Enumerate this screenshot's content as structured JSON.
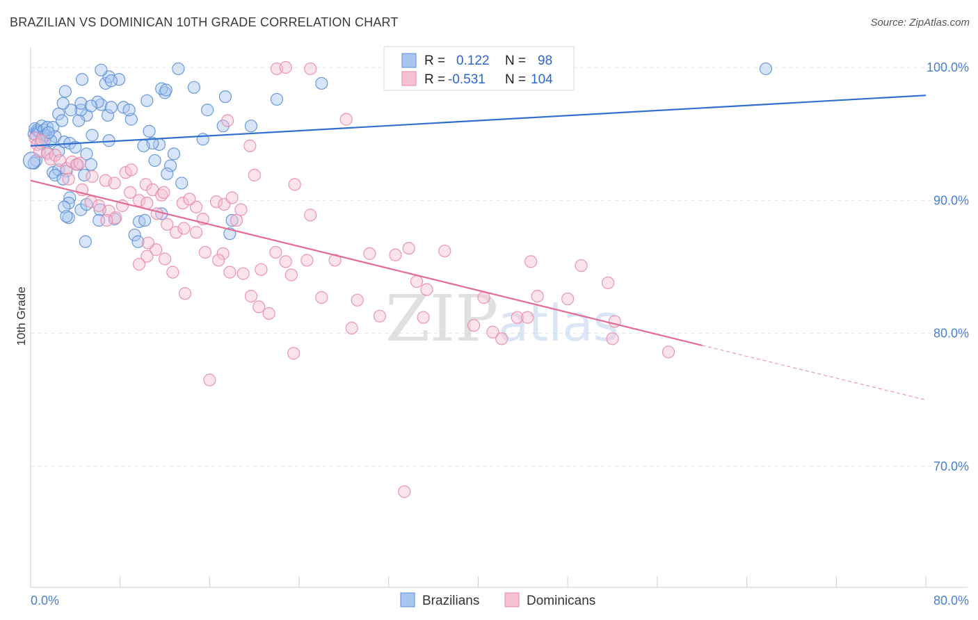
{
  "title": "BRAZILIAN VS DOMINICAN 10TH GRADE CORRELATION CHART",
  "source": "Source: ZipAtlas.com",
  "watermark": {
    "zip": "ZIP",
    "atlas": "atlas"
  },
  "colors": {
    "brazilians_fill": "#a9c6f0",
    "brazilians_stroke": "#5a8fd8",
    "brazilians_line": "#2f6fcf",
    "dominicans_fill": "#f6c1d2",
    "dominicans_stroke": "#e88aaa",
    "dominicans_line": "#e46a95",
    "axis_label": "#4a7fd0",
    "grid": "#e4e4e4"
  },
  "legend": {
    "r_label": "R =",
    "n_label": "N =",
    "rows": [
      {
        "r": "0.122",
        "n": "98"
      },
      {
        "r": "-0.531",
        "n": "104"
      }
    ]
  },
  "chart_data": {
    "type": "scatter",
    "title": "BRAZILIAN VS DOMINICAN 10TH GRADE CORRELATION CHART",
    "xlabel": "",
    "ylabel": "10th Grade",
    "xlim": [
      0,
      80
    ],
    "ylim": [
      60,
      100
    ],
    "y_ticks": [
      {
        "value": 100,
        "label": "100.0%"
      },
      {
        "value": 90,
        "label": "90.0%"
      },
      {
        "value": 80,
        "label": "80.0%"
      },
      {
        "value": 70,
        "label": "70.0%"
      }
    ],
    "x_tick_labels": [
      {
        "value": 0,
        "label": "0.0%"
      },
      {
        "value": 80,
        "label": "80.0%"
      }
    ],
    "series": [
      {
        "name": "Brazilians",
        "r": 0.122,
        "n": 98,
        "trend": {
          "x": [
            0,
            80
          ],
          "y": [
            94.1,
            97.9
          ]
        },
        "points": [
          [
            0.3,
            95.0
          ],
          [
            0.4,
            95.4
          ],
          [
            0.5,
            94.9
          ],
          [
            0.6,
            95.3
          ],
          [
            0.7,
            95.2
          ],
          [
            0.8,
            95.1
          ],
          [
            1.0,
            95.6
          ],
          [
            1.2,
            95.3
          ],
          [
            1.1,
            94.8
          ],
          [
            0.9,
            94.3
          ],
          [
            1.3,
            94.6
          ],
          [
            1.5,
            95.5
          ],
          [
            1.4,
            94.9
          ],
          [
            2.0,
            95.5
          ],
          [
            2.2,
            94.8
          ],
          [
            1.8,
            94.5
          ],
          [
            1.6,
            95.1
          ],
          [
            0.5,
            93.0
          ],
          [
            0.3,
            92.8
          ],
          [
            1.5,
            93.6
          ],
          [
            2.5,
            93.7
          ],
          [
            3.0,
            94.4
          ],
          [
            3.5,
            94.3
          ],
          [
            4.0,
            94.0
          ],
          [
            5.0,
            93.5
          ],
          [
            5.5,
            94.9
          ],
          [
            7.0,
            94.5
          ],
          [
            2.0,
            92.1
          ],
          [
            2.5,
            92.3
          ],
          [
            3.2,
            92.2
          ],
          [
            4.2,
            92.7
          ],
          [
            5.4,
            92.7
          ],
          [
            4.8,
            91.9
          ],
          [
            2.2,
            91.9
          ],
          [
            2.9,
            91.6
          ],
          [
            3.5,
            90.2
          ],
          [
            3.4,
            89.8
          ],
          [
            4.5,
            89.3
          ],
          [
            3.0,
            89.5
          ],
          [
            3.4,
            88.7
          ],
          [
            3.2,
            88.8
          ],
          [
            6.2,
            89.3
          ],
          [
            5.0,
            89.7
          ],
          [
            6.1,
            88.5
          ],
          [
            7.5,
            88.6
          ],
          [
            9.7,
            88.4
          ],
          [
            10.2,
            88.5
          ],
          [
            4.9,
            86.9
          ],
          [
            9.3,
            87.4
          ],
          [
            9.6,
            86.9
          ],
          [
            11.7,
            89.0
          ],
          [
            11.5,
            94.2
          ],
          [
            10.9,
            94.3
          ],
          [
            11.1,
            93.0
          ],
          [
            12.5,
            92.6
          ],
          [
            12.2,
            92.0
          ],
          [
            10.6,
            95.2
          ],
          [
            13.5,
            91.3
          ],
          [
            12.8,
            93.5
          ],
          [
            15.4,
            94.6
          ],
          [
            17.2,
            95.6
          ],
          [
            15.8,
            96.8
          ],
          [
            17.4,
            97.8
          ],
          [
            14.6,
            98.5
          ],
          [
            10.4,
            97.5
          ],
          [
            12.0,
            98.1
          ],
          [
            11.7,
            98.4
          ],
          [
            9.0,
            96.1
          ],
          [
            8.3,
            97.0
          ],
          [
            6.9,
            96.4
          ],
          [
            6.3,
            97.2
          ],
          [
            5.0,
            96.4
          ],
          [
            4.3,
            96.0
          ],
          [
            4.5,
            96.8
          ],
          [
            3.6,
            96.8
          ],
          [
            2.9,
            97.3
          ],
          [
            2.5,
            96.5
          ],
          [
            2.8,
            96.0
          ],
          [
            4.5,
            97.3
          ],
          [
            6.0,
            97.4
          ],
          [
            5.4,
            97.1
          ],
          [
            7.2,
            97.0
          ],
          [
            8.8,
            96.8
          ],
          [
            6.7,
            98.8
          ],
          [
            7.0,
            99.3
          ],
          [
            7.9,
            99.1
          ],
          [
            7.2,
            99.0
          ],
          [
            4.6,
            99.1
          ],
          [
            3.1,
            98.2
          ],
          [
            6.3,
            99.8
          ],
          [
            13.2,
            99.9
          ],
          [
            26.0,
            98.8
          ],
          [
            65.7,
            99.9
          ],
          [
            12.1,
            98.3
          ],
          [
            22.0,
            97.6
          ],
          [
            19.7,
            95.6
          ],
          [
            18.0,
            88.5
          ],
          [
            17.8,
            87.5
          ],
          [
            10.1,
            94.1
          ]
        ]
      },
      {
        "name": "Dominicans",
        "r": -0.531,
        "n": 104,
        "trend": {
          "x": [
            0,
            60
          ],
          "y": [
            91.5,
            79.1
          ]
        },
        "trend_dashed": {
          "x": [
            60,
            80
          ],
          "y": [
            79.1,
            75.0
          ]
        },
        "points": [
          [
            0.4,
            94.7
          ],
          [
            0.6,
            94.2
          ],
          [
            0.8,
            93.7
          ],
          [
            1.0,
            94.5
          ],
          [
            1.5,
            93.5
          ],
          [
            1.8,
            93.1
          ],
          [
            2.2,
            93.4
          ],
          [
            2.6,
            93.0
          ],
          [
            3.2,
            92.4
          ],
          [
            3.7,
            92.9
          ],
          [
            4.1,
            92.7
          ],
          [
            4.4,
            92.8
          ],
          [
            5.5,
            91.8
          ],
          [
            6.7,
            91.5
          ],
          [
            7.5,
            91.3
          ],
          [
            8.5,
            92.1
          ],
          [
            9.0,
            92.3
          ],
          [
            10.3,
            91.2
          ],
          [
            10.9,
            90.8
          ],
          [
            11.7,
            90.4
          ],
          [
            13.6,
            89.8
          ],
          [
            14.8,
            89.5
          ],
          [
            15.4,
            88.6
          ],
          [
            16.6,
            89.9
          ],
          [
            17.3,
            89.7
          ],
          [
            18.0,
            90.2
          ],
          [
            18.4,
            88.5
          ],
          [
            18.8,
            89.3
          ],
          [
            3.4,
            91.6
          ],
          [
            4.6,
            90.8
          ],
          [
            5.4,
            89.9
          ],
          [
            6.1,
            89.6
          ],
          [
            7.0,
            89.2
          ],
          [
            7.6,
            88.7
          ],
          [
            8.9,
            90.6
          ],
          [
            9.7,
            90.0
          ],
          [
            10.4,
            89.8
          ],
          [
            11.3,
            89.0
          ],
          [
            12.2,
            88.2
          ],
          [
            13.0,
            87.6
          ],
          [
            13.7,
            87.9
          ],
          [
            14.8,
            87.6
          ],
          [
            11.2,
            86.3
          ],
          [
            10.4,
            85.8
          ],
          [
            9.7,
            85.2
          ],
          [
            12.0,
            85.6
          ],
          [
            12.7,
            84.6
          ],
          [
            13.8,
            83.0
          ],
          [
            15.6,
            86.1
          ],
          [
            17.2,
            86.0
          ],
          [
            17.8,
            84.6
          ],
          [
            19.0,
            84.5
          ],
          [
            19.7,
            82.8
          ],
          [
            20.4,
            82.0
          ],
          [
            21.3,
            81.5
          ],
          [
            20.6,
            84.8
          ],
          [
            21.9,
            86.1
          ],
          [
            22.8,
            85.4
          ],
          [
            23.3,
            84.4
          ],
          [
            24.7,
            85.5
          ],
          [
            26.0,
            82.7
          ],
          [
            27.2,
            85.5
          ],
          [
            28.7,
            80.4
          ],
          [
            29.2,
            82.5
          ],
          [
            30.3,
            86.0
          ],
          [
            31.2,
            81.3
          ],
          [
            32.6,
            85.9
          ],
          [
            33.8,
            86.4
          ],
          [
            34.5,
            83.9
          ],
          [
            35.1,
            81.2
          ],
          [
            35.4,
            83.3
          ],
          [
            33.4,
            68.1
          ],
          [
            37.0,
            86.2
          ],
          [
            39.6,
            80.6
          ],
          [
            40.5,
            82.7
          ],
          [
            41.3,
            80.1
          ],
          [
            42.1,
            79.6
          ],
          [
            43.5,
            81.2
          ],
          [
            44.4,
            81.2
          ],
          [
            44.7,
            85.4
          ],
          [
            45.3,
            82.8
          ],
          [
            48.0,
            82.6
          ],
          [
            49.2,
            85.1
          ],
          [
            51.6,
            83.8
          ],
          [
            52.2,
            80.9
          ],
          [
            52.0,
            79.6
          ],
          [
            57.0,
            78.6
          ],
          [
            6.8,
            88.5
          ],
          [
            16.8,
            85.5
          ],
          [
            10.5,
            86.8
          ],
          [
            8.2,
            89.6
          ],
          [
            11.9,
            90.6
          ],
          [
            14.2,
            90.1
          ],
          [
            25.0,
            88.9
          ],
          [
            23.6,
            91.2
          ],
          [
            20.0,
            91.9
          ],
          [
            17.6,
            96.0
          ],
          [
            19.6,
            94.1
          ],
          [
            22.0,
            99.9
          ],
          [
            22.8,
            100.0
          ],
          [
            25.0,
            99.9
          ],
          [
            28.2,
            96.1
          ],
          [
            16.0,
            76.5
          ],
          [
            23.5,
            78.5
          ]
        ]
      }
    ]
  },
  "bottom_legend": [
    {
      "label": "Brazilians"
    },
    {
      "label": "Dominicans"
    }
  ]
}
